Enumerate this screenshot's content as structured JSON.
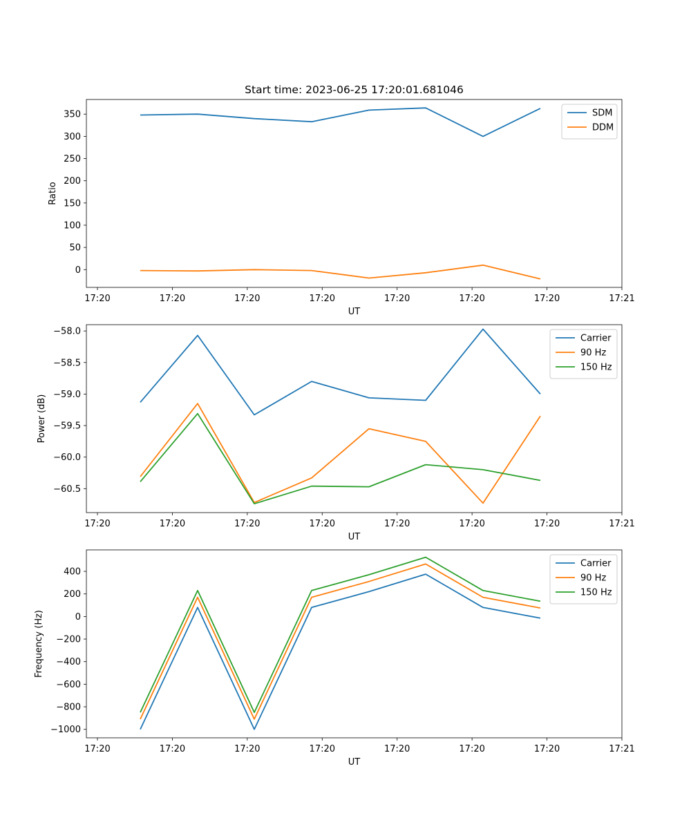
{
  "chart_data": [
    {
      "type": "line",
      "title": "Start time: 2023-06-25 17:20:01.681046",
      "xlabel": "UT",
      "ylabel": "Ratio",
      "x_tick_labels": [
        "17:20",
        "17:20",
        "17:20",
        "17:20",
        "17:20",
        "17:20",
        "17:20",
        "17:21"
      ],
      "y_ticks": [
        0,
        50,
        100,
        150,
        200,
        250,
        300,
        350
      ],
      "y_tick_labels": [
        "0",
        "50",
        "100",
        "150",
        "200",
        "250",
        "300",
        "350"
      ],
      "ylim": [
        -40,
        383
      ],
      "legend_position": "top-right",
      "series": [
        {
          "name": "SDM",
          "color": "#1f77b4",
          "values": [
            348,
            350,
            340,
            333,
            359,
            364,
            300,
            363
          ]
        },
        {
          "name": "DDM",
          "color": "#ff7f0e",
          "values": [
            -2,
            -3,
            0,
            -2,
            -19,
            -7,
            10,
            -21
          ]
        }
      ]
    },
    {
      "type": "line",
      "title": "",
      "xlabel": "UT",
      "ylabel": "Power (dB)",
      "x_tick_labels": [
        "17:20",
        "17:20",
        "17:20",
        "17:20",
        "17:20",
        "17:20",
        "17:20",
        "17:21"
      ],
      "y_ticks": [
        -58.0,
        -58.5,
        -59.0,
        -59.5,
        -60.0,
        -60.5
      ],
      "y_tick_labels": [
        "−58.0",
        "−58.5",
        "−59.0",
        "−59.5",
        "−60.0",
        "−60.5"
      ],
      "ylim": [
        -60.88,
        -57.9
      ],
      "legend_position": "top-right",
      "series": [
        {
          "name": "Carrier",
          "color": "#1f77b4",
          "values": [
            -59.13,
            -58.07,
            -59.33,
            -58.8,
            -59.06,
            -59.1,
            -57.97,
            -59.0
          ]
        },
        {
          "name": "90 Hz",
          "color": "#ff7f0e",
          "values": [
            -60.31,
            -59.15,
            -60.72,
            -60.33,
            -59.55,
            -59.75,
            -60.73,
            -59.35
          ]
        },
        {
          "name": "150 Hz",
          "color": "#2ca02c",
          "values": [
            -60.39,
            -59.31,
            -60.74,
            -60.46,
            -60.47,
            -60.12,
            -60.2,
            -60.37
          ]
        }
      ]
    },
    {
      "type": "line",
      "title": "",
      "xlabel": "UT",
      "ylabel": "Frequency (Hz)",
      "x_tick_labels": [
        "17:20",
        "17:20",
        "17:20",
        "17:20",
        "17:20",
        "17:20",
        "17:20",
        "17:21"
      ],
      "y_ticks": [
        -1000,
        -800,
        -600,
        -400,
        -200,
        0,
        200,
        400
      ],
      "y_tick_labels": [
        "−1000",
        "−800",
        "−600",
        "−400",
        "−200",
        "0",
        "200",
        "400"
      ],
      "ylim": [
        -1075,
        590
      ],
      "legend_position": "top-right",
      "series": [
        {
          "name": "Carrier",
          "color": "#1f77b4",
          "values": [
            -1000,
            80,
            -1000,
            80,
            220,
            375,
            80,
            -15
          ]
        },
        {
          "name": "90 Hz",
          "color": "#ff7f0e",
          "values": [
            -910,
            170,
            -910,
            170,
            310,
            465,
            170,
            75
          ]
        },
        {
          "name": "150 Hz",
          "color": "#2ca02c",
          "values": [
            -850,
            230,
            -850,
            230,
            370,
            525,
            230,
            135
          ]
        }
      ]
    }
  ]
}
